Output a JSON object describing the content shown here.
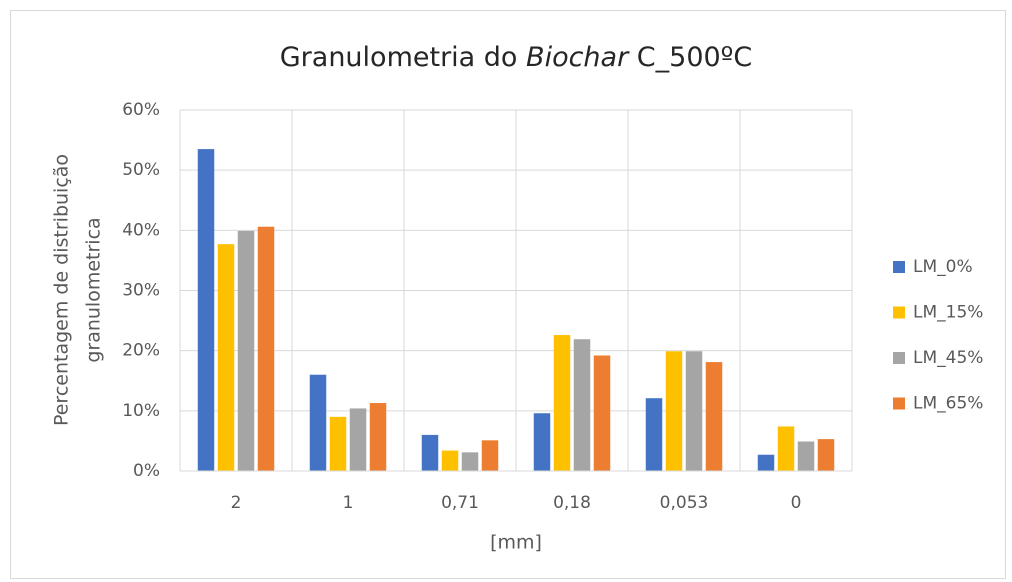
{
  "chart_data": {
    "type": "bar",
    "title": [
      "Granulometria do ",
      "Biochar",
      " C_500ºC"
    ],
    "x_label": "[mm]",
    "y_label": [
      "Percentagem de distribuição",
      "granulometrica"
    ],
    "categories": [
      "2",
      "1",
      "0,71",
      "0,18",
      "0,053",
      "0"
    ],
    "series": [
      {
        "name": "LM_0%",
        "color": "#4472c4",
        "values": [
          53.5,
          16,
          6,
          9.6,
          12.1,
          2.7
        ]
      },
      {
        "name": "LM_15%",
        "color": "#ffc000",
        "values": [
          37.7,
          9,
          3.4,
          22.6,
          19.9,
          7.4
        ]
      },
      {
        "name": "LM_45%",
        "color": "#a5a5a5",
        "values": [
          39.9,
          10.4,
          3.1,
          21.9,
          19.9,
          4.9
        ]
      },
      {
        "name": "LM_65%",
        "color": "#ed7d31",
        "values": [
          40.6,
          11.3,
          5.1,
          19.2,
          18.1,
          5.3
        ]
      }
    ],
    "ylim": [
      0,
      60
    ],
    "yticks": [
      {
        "value": 0,
        "label": "0%"
      },
      {
        "value": 10,
        "label": "10%"
      },
      {
        "value": 20,
        "label": "20%"
      },
      {
        "value": 30,
        "label": "30%"
      },
      {
        "value": 40,
        "label": "40%"
      },
      {
        "value": 50,
        "label": "50%"
      },
      {
        "value": 60,
        "label": "60%"
      }
    ],
    "grid": true,
    "legend": "right"
  }
}
